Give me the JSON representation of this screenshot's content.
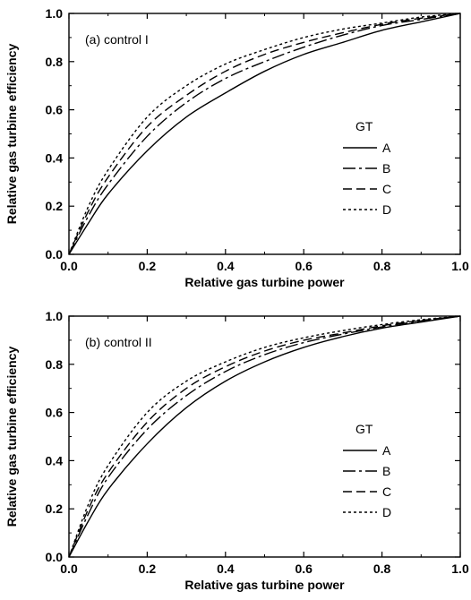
{
  "chart_data": [
    {
      "type": "line",
      "panel_label": "(a) control I",
      "xlabel": "Relative gas turbine power",
      "ylabel": "Relative gas turbine efficiency",
      "xlim": [
        0.0,
        1.0
      ],
      "ylim": [
        0.0,
        1.0
      ],
      "x_ticks": [
        "0.0",
        "0.2",
        "0.4",
        "0.6",
        "0.8",
        "1.0"
      ],
      "y_ticks": [
        "0.0",
        "0.2",
        "0.4",
        "0.6",
        "0.8",
        "1.0"
      ],
      "grid": false,
      "legend_title": "GT",
      "legend_position": "right",
      "x": [
        0.0,
        0.05,
        0.1,
        0.2,
        0.3,
        0.4,
        0.5,
        0.6,
        0.7,
        0.8,
        0.9,
        1.0
      ],
      "series": [
        {
          "name": "A",
          "dash": "solid",
          "values": [
            0.0,
            0.13,
            0.25,
            0.43,
            0.57,
            0.67,
            0.76,
            0.83,
            0.88,
            0.93,
            0.965,
            1.0
          ]
        },
        {
          "name": "B",
          "dash": "dashdot",
          "values": [
            0.0,
            0.16,
            0.29,
            0.49,
            0.63,
            0.73,
            0.8,
            0.86,
            0.91,
            0.95,
            0.975,
            1.0
          ]
        },
        {
          "name": "C",
          "dash": "dash",
          "values": [
            0.0,
            0.18,
            0.32,
            0.53,
            0.66,
            0.76,
            0.83,
            0.88,
            0.92,
            0.955,
            0.98,
            1.0
          ]
        },
        {
          "name": "D",
          "dash": "dot",
          "values": [
            0.0,
            0.2,
            0.35,
            0.57,
            0.7,
            0.79,
            0.85,
            0.9,
            0.935,
            0.96,
            0.985,
            1.0
          ]
        }
      ]
    },
    {
      "type": "line",
      "panel_label": "(b) control II",
      "xlabel": "Relative gas turbine power",
      "ylabel": "Relative gas turbine efficiency",
      "xlim": [
        0.0,
        1.0
      ],
      "ylim": [
        0.0,
        1.0
      ],
      "x_ticks": [
        "0.0",
        "0.2",
        "0.4",
        "0.6",
        "0.8",
        "1.0"
      ],
      "y_ticks": [
        "0.0",
        "0.2",
        "0.4",
        "0.6",
        "0.8",
        "1.0"
      ],
      "grid": false,
      "legend_title": "GT",
      "legend_position": "right",
      "x": [
        0.0,
        0.05,
        0.1,
        0.2,
        0.3,
        0.4,
        0.5,
        0.6,
        0.7,
        0.8,
        0.9,
        1.0
      ],
      "series": [
        {
          "name": "A",
          "dash": "solid",
          "values": [
            0.0,
            0.15,
            0.28,
            0.47,
            0.62,
            0.73,
            0.81,
            0.87,
            0.915,
            0.95,
            0.975,
            1.0
          ]
        },
        {
          "name": "B",
          "dash": "dashdot",
          "values": [
            0.0,
            0.18,
            0.33,
            0.53,
            0.67,
            0.77,
            0.84,
            0.89,
            0.925,
            0.955,
            0.98,
            1.0
          ]
        },
        {
          "name": "C",
          "dash": "dash",
          "values": [
            0.0,
            0.2,
            0.35,
            0.56,
            0.7,
            0.79,
            0.855,
            0.9,
            0.93,
            0.96,
            0.982,
            1.0
          ]
        },
        {
          "name": "D",
          "dash": "dot",
          "values": [
            0.0,
            0.22,
            0.38,
            0.6,
            0.73,
            0.81,
            0.87,
            0.91,
            0.94,
            0.965,
            0.985,
            1.0
          ]
        }
      ]
    }
  ]
}
